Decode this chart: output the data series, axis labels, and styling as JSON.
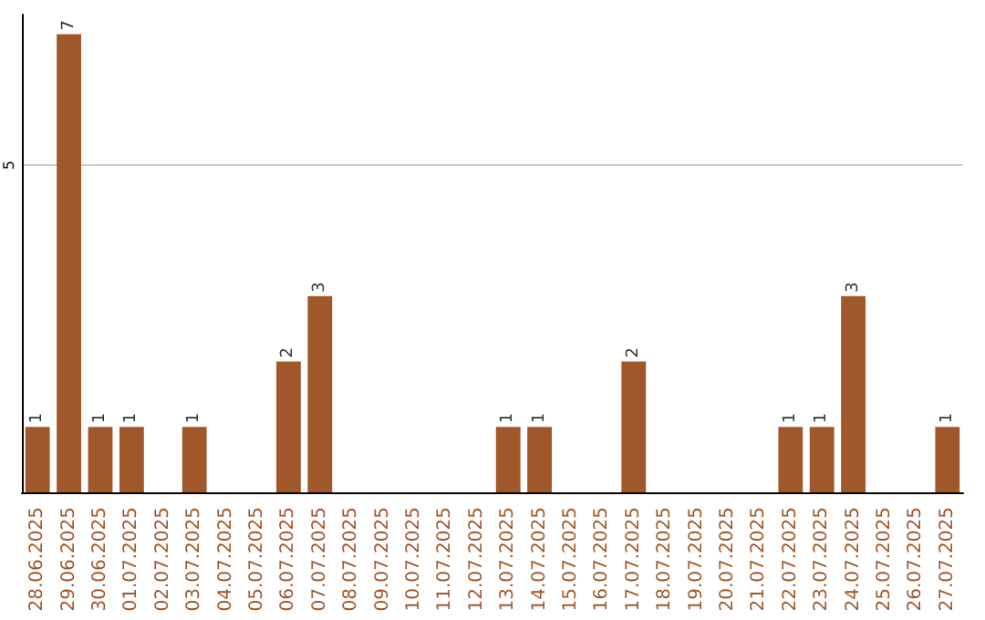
{
  "chart_data": {
    "type": "bar",
    "categories": [
      "28.06.2025",
      "29.06.2025",
      "30.06.2025",
      "01.07.2025",
      "02.07.2025",
      "03.07.2025",
      "04.07.2025",
      "05.07.2025",
      "06.07.2025",
      "07.07.2025",
      "08.07.2025",
      "09.07.2025",
      "10.07.2025",
      "11.07.2025",
      "12.07.2025",
      "13.07.2025",
      "14.07.2025",
      "15.07.2025",
      "16.07.2025",
      "17.07.2025",
      "18.07.2025",
      "19.07.2025",
      "20.07.2025",
      "21.07.2025",
      "22.07.2025",
      "23.07.2025",
      "24.07.2025",
      "25.07.2025",
      "26.07.2025",
      "27.07.2025"
    ],
    "values": [
      1,
      7,
      1,
      1,
      0,
      1,
      0,
      0,
      2,
      3,
      0,
      0,
      0,
      0,
      0,
      1,
      1,
      0,
      0,
      2,
      0,
      0,
      0,
      0,
      1,
      1,
      3,
      0,
      0,
      1
    ],
    "value_labels": [
      "1",
      "7",
      "1",
      "1",
      null,
      "1",
      null,
      null,
      "2",
      "3",
      null,
      null,
      null,
      null,
      null,
      "1",
      "1",
      null,
      null,
      "2",
      null,
      null,
      null,
      null,
      "1",
      "1",
      "3",
      null,
      null,
      "1"
    ],
    "color": "#a0582a",
    "ylim": [
      0,
      7.3
    ],
    "yticks": [
      5
    ],
    "grid": "y"
  }
}
